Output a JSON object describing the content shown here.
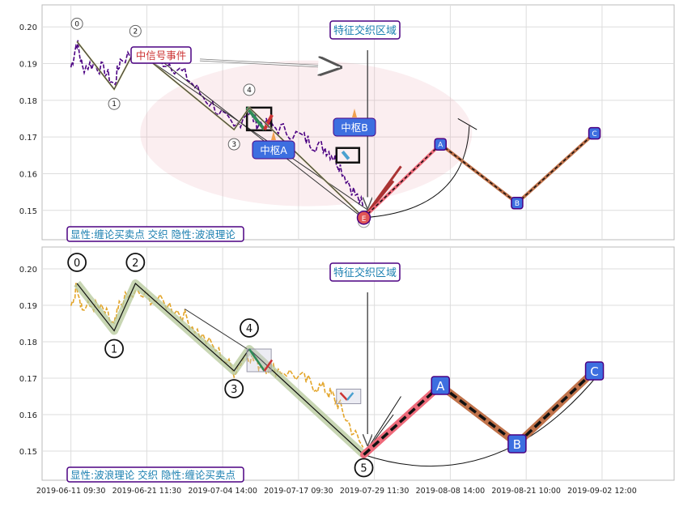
{
  "chart_data": [
    {
      "type": "line",
      "panel": "top",
      "ylim": [
        0.142,
        0.206
      ],
      "yticks": [
        0.15,
        0.16,
        0.17,
        0.18,
        0.19,
        0.2
      ],
      "ytick_labels": [
        "0.15",
        "0.16",
        "0.17",
        "0.18",
        "0.19",
        "0.20"
      ],
      "grid": true,
      "region_label": "特征交织区域",
      "signal_label": "中信号事件",
      "hub_labels": [
        "中枢A",
        "中枢B"
      ],
      "caption": "显性:缠论买卖点 交织 隐性:波浪理论",
      "wave_points": [
        {
          "label": "0",
          "x": 0.8,
          "y": 0.196
        },
        {
          "label": "1",
          "x": 5.7,
          "y": 0.183
        },
        {
          "label": "2",
          "x": 8.5,
          "y": 0.194
        },
        {
          "label": "3",
          "x": 21.5,
          "y": 0.172
        },
        {
          "label": "4",
          "x": 23.5,
          "y": 0.178
        },
        {
          "label": "E",
          "x": 38.6,
          "y": 0.148
        }
      ],
      "projection_points": [
        {
          "label": "A",
          "x": 48.7,
          "y": 0.168
        },
        {
          "label": "B",
          "x": 58.8,
          "y": 0.152
        },
        {
          "label": "C",
          "x": 69.0,
          "y": 0.171
        }
      ]
    },
    {
      "type": "line",
      "panel": "bottom",
      "ylim": [
        0.142,
        0.206
      ],
      "yticks": [
        0.15,
        0.16,
        0.17,
        0.18,
        0.19,
        0.2
      ],
      "ytick_labels": [
        "0.15",
        "0.16",
        "0.17",
        "0.18",
        "0.19",
        "0.20"
      ],
      "xtick_labels": [
        "2019-06-11 09:30",
        "2019-06-21 11:30",
        "2019-07-04 14:00",
        "2019-07-17 09:30",
        "2019-07-29 11:30",
        "2019-08-08 14:00",
        "2019-08-21 10:00",
        "2019-09-02 12:00"
      ],
      "xtick_positions": [
        0,
        10,
        20,
        30,
        40,
        50,
        60,
        70
      ],
      "grid": true,
      "region_label": "特征交织区域",
      "caption": "显性:波浪理论 交织 隐性:缠论买卖点",
      "wave_points": [
        {
          "label": "0",
          "x": 0.8,
          "y": 0.196
        },
        {
          "label": "1",
          "x": 5.7,
          "y": 0.183
        },
        {
          "label": "2",
          "x": 8.5,
          "y": 0.196
        },
        {
          "label": "3",
          "x": 21.5,
          "y": 0.172
        },
        {
          "label": "4",
          "x": 23.5,
          "y": 0.178
        },
        {
          "label": "5",
          "x": 38.6,
          "y": 0.149
        }
      ],
      "projection_points": [
        {
          "label": "A",
          "x": 48.7,
          "y": 0.168
        },
        {
          "label": "B",
          "x": 58.8,
          "y": 0.152
        },
        {
          "label": "C",
          "x": 69.0,
          "y": 0.172
        }
      ]
    }
  ]
}
